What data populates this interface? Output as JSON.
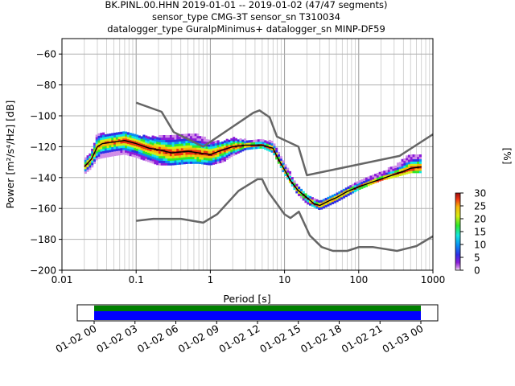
{
  "title_lines": [
    "BK.PINL.00.HHN   2019-01-01 -- 2019-01-02  (47/47 segments)",
    "sensor_type CMG-3T sensor_sn T310034",
    "datalogger_type GuralpMinimus+ datalogger_sn MINP-DF59"
  ],
  "colorbar": {
    "label": "[%]",
    "ticks": [
      0,
      5,
      10,
      15,
      20,
      25,
      30
    ],
    "range": [
      0,
      30
    ]
  },
  "chart_data": {
    "type": "heatmap",
    "xlabel": "Period [s]",
    "ylabel": "Power [m²/s⁴/Hz] [dB]",
    "xscale": "log",
    "xlim": [
      0.01,
      1000
    ],
    "ylim": [
      -200,
      -50
    ],
    "x_ticks": [
      "0.01",
      "0.1",
      "1",
      "10",
      "100",
      "1000"
    ],
    "y_ticks": [
      -60,
      -80,
      -100,
      -120,
      -140,
      -160,
      -180,
      -200
    ],
    "grid": true,
    "series": [
      {
        "kind": "mode",
        "color": "#000000",
        "x": [
          0.02,
          0.025,
          0.03,
          0.035,
          0.05,
          0.07,
          0.1,
          0.15,
          0.2,
          0.3,
          0.5,
          0.7,
          1,
          1.5,
          2,
          3,
          5,
          7,
          8,
          10,
          12,
          15,
          20,
          25,
          30,
          40,
          50,
          70,
          100,
          150,
          200,
          300,
          400,
          500,
          700
        ],
        "y": [
          -133,
          -128,
          -120,
          -118,
          -117,
          -116,
          -118,
          -121,
          -122,
          -124,
          -123,
          -124,
          -125,
          -122,
          -120,
          -119,
          -119,
          -121,
          -127,
          -135,
          -142,
          -148,
          -153,
          -157,
          -158,
          -155,
          -153,
          -149,
          -146,
          -143,
          -141,
          -138,
          -136,
          -134,
          -133
        ]
      },
      {
        "kind": "nhnm",
        "color": "#666666",
        "x": [
          0.1,
          0.22,
          0.32,
          0.8,
          3.8,
          4.6,
          6.3,
          7.9,
          15.4,
          20,
          354.8,
          1000
        ],
        "y": [
          -91.5,
          -97.4,
          -110.5,
          -120,
          -98,
          -96.5,
          -101,
          -113.5,
          -120,
          -138.5,
          -126,
          -112
        ]
      },
      {
        "kind": "nlnm",
        "color": "#666666",
        "x": [
          0.1,
          0.17,
          0.4,
          0.8,
          1.24,
          2.4,
          4.3,
          5,
          6,
          10,
          12,
          15.6,
          21.9,
          31.6,
          45,
          70,
          101,
          154,
          328,
          600,
          1000
        ],
        "y": [
          -168,
          -166.7,
          -166.7,
          -169.2,
          -163.7,
          -148.6,
          -141.1,
          -141.1,
          -149,
          -163.8,
          -166.2,
          -162.1,
          -177.5,
          -185,
          -187.5,
          -187.5,
          -185,
          -185,
          -187.5,
          -184.4,
          -178
        ]
      }
    ],
    "density_band": {
      "x": [
        0.02,
        0.025,
        0.03,
        0.05,
        0.07,
        0.1,
        0.15,
        0.2,
        0.3,
        0.5,
        0.7,
        1,
        1.5,
        2,
        3,
        5,
        7,
        10,
        15,
        20,
        30,
        50,
        100,
        200,
        300,
        500,
        700
      ],
      "lo": [
        -138,
        -134,
        -128,
        -126,
        -125,
        -127,
        -130,
        -132,
        -132,
        -131,
        -131,
        -132,
        -130,
        -126,
        -122,
        -121,
        -124,
        -138,
        -151,
        -157,
        -161,
        -156,
        -148,
        -142,
        -140,
        -137,
        -137
      ],
      "hi": [
        -128,
        -124,
        -112,
        -112,
        -110,
        -113,
        -114,
        -114,
        -113,
        -112,
        -113,
        -117,
        -117,
        -115,
        -116,
        -116,
        -117,
        -131,
        -146,
        -151,
        -155,
        -150,
        -143,
        -137,
        -133,
        -125,
        -125
      ]
    }
  },
  "timeline": {
    "tick_labels": [
      "01-02 00",
      "01-02 03",
      "01-02 06",
      "01-02 09",
      "01-02 12",
      "01-02 15",
      "01-02 18",
      "01-02 21",
      "01-03 00"
    ],
    "bar_colors": [
      "#008000",
      "#0000ff"
    ]
  }
}
